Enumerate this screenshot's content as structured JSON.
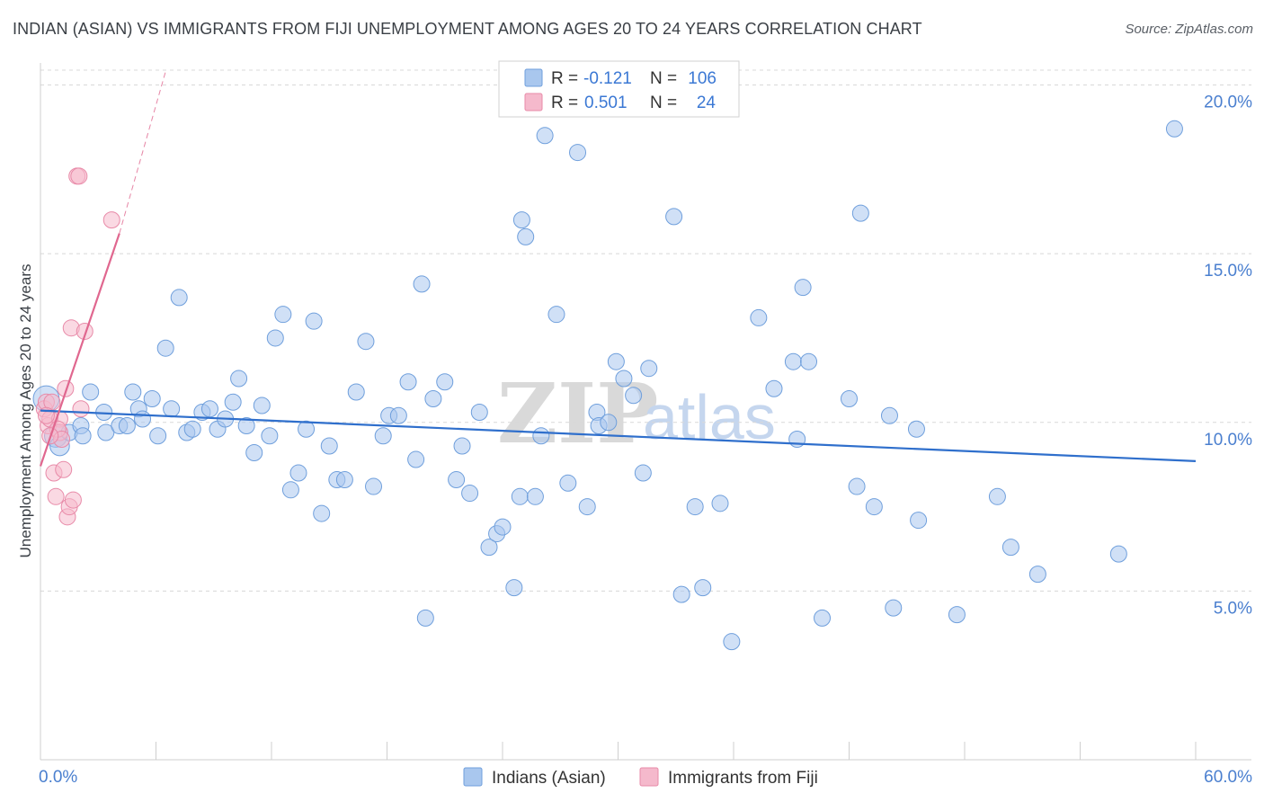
{
  "header": {
    "title": "INDIAN (ASIAN) VS IMMIGRANTS FROM FIJI UNEMPLOYMENT AMONG AGES 20 TO 24 YEARS CORRELATION CHART",
    "source": "Source: ZipAtlas.com"
  },
  "watermark": {
    "zip": "ZIP",
    "atlas": "atlas"
  },
  "colors": {
    "blue_fill": "#a9c7ee",
    "blue_stroke": "#6f9fdc",
    "blue_line": "#2f6fcc",
    "pink_fill": "#f5b9cc",
    "pink_stroke": "#e88aa8",
    "pink_line": "#e0678f",
    "grid": "#d8d8d8",
    "tick_text": "#4a7fcf"
  },
  "legend": {
    "r_label": "R =",
    "n_label": "N =",
    "rows": [
      {
        "series": "blue",
        "r": "-0.121",
        "n": "106"
      },
      {
        "series": "pink",
        "r": "0.501",
        "n": "24"
      }
    ]
  },
  "chart_data": {
    "type": "scatter",
    "title": "INDIAN (ASIAN) VS IMMIGRANTS FROM FIJI UNEMPLOYMENT AMONG AGES 20 TO 24 YEARS CORRELATION CHART",
    "xlabel": "",
    "ylabel": "Unemployment Among Ages 20 to 24 years",
    "xlim": [
      0,
      60
    ],
    "ylim": [
      0,
      20.6
    ],
    "x_tick_labels": [
      "0.0%",
      "60.0%"
    ],
    "y_ticks": [
      {
        "value": 5,
        "label": "5.0%"
      },
      {
        "value": 10,
        "label": "10.0%"
      },
      {
        "value": 15,
        "label": "15.0%"
      },
      {
        "value": 20,
        "label": "20.0%"
      }
    ],
    "x_minor_ticks": [
      0,
      6,
      12,
      18,
      24,
      30,
      36,
      42,
      48,
      54,
      60
    ],
    "series": [
      {
        "name": "Indians (Asian)",
        "color": "blue",
        "trend": {
          "x": [
            0,
            60
          ],
          "y": [
            10.35,
            8.85
          ]
        },
        "points": [
          [
            0.3,
            10.7,
            1.6
          ],
          [
            0.8,
            9.6,
            1.4
          ],
          [
            1.0,
            9.3,
            1.2
          ],
          [
            1.5,
            9.7,
            1.0
          ],
          [
            2.1,
            9.9,
            1.0
          ],
          [
            2.6,
            10.9,
            1.0
          ],
          [
            3.3,
            10.3,
            1.0
          ],
          [
            3.4,
            9.7,
            1.0
          ],
          [
            4.1,
            9.9,
            1.0
          ],
          [
            4.8,
            10.9,
            1.0
          ],
          [
            5.1,
            10.4,
            1.0
          ],
          [
            5.3,
            10.1,
            1.0
          ],
          [
            5.8,
            10.7,
            1.0
          ],
          [
            6.1,
            9.6,
            1.0
          ],
          [
            6.5,
            12.2,
            1.0
          ],
          [
            6.8,
            10.4,
            1.0
          ],
          [
            7.2,
            13.7,
            1.0
          ],
          [
            7.6,
            9.7,
            1.0
          ],
          [
            7.9,
            9.8,
            1.0
          ],
          [
            8.4,
            10.3,
            1.0
          ],
          [
            8.8,
            10.4,
            1.0
          ],
          [
            9.2,
            9.8,
            1.0
          ],
          [
            9.6,
            10.1,
            1.0
          ],
          [
            10.0,
            10.6,
            1.0
          ],
          [
            10.3,
            11.3,
            1.0
          ],
          [
            10.7,
            9.9,
            1.0
          ],
          [
            11.1,
            9.1,
            1.0
          ],
          [
            11.5,
            10.5,
            1.0
          ],
          [
            11.9,
            9.6,
            1.0
          ],
          [
            12.2,
            12.5,
            1.0
          ],
          [
            12.6,
            13.2,
            1.0
          ],
          [
            13.0,
            8.0,
            1.0
          ],
          [
            13.4,
            8.5,
            1.0
          ],
          [
            13.8,
            9.8,
            1.0
          ],
          [
            14.2,
            13.0,
            1.0
          ],
          [
            14.6,
            7.3,
            1.0
          ],
          [
            15.0,
            9.3,
            1.0
          ],
          [
            15.4,
            8.3,
            1.0
          ],
          [
            15.8,
            8.3,
            1.0
          ],
          [
            16.4,
            10.9,
            1.0
          ],
          [
            16.9,
            12.4,
            1.0
          ],
          [
            17.3,
            8.1,
            1.0
          ],
          [
            17.8,
            9.6,
            1.0
          ],
          [
            18.1,
            10.2,
            1.0
          ],
          [
            18.6,
            10.2,
            1.0
          ],
          [
            19.1,
            11.2,
            1.0
          ],
          [
            19.5,
            8.9,
            1.0
          ],
          [
            19.8,
            14.1,
            1.0
          ],
          [
            20.4,
            10.7,
            1.0
          ],
          [
            21.0,
            11.2,
            1.0
          ],
          [
            21.6,
            8.3,
            1.0
          ],
          [
            21.9,
            9.3,
            1.0
          ],
          [
            22.3,
            7.9,
            1.0
          ],
          [
            22.8,
            10.3,
            1.0
          ],
          [
            23.3,
            6.3,
            1.0
          ],
          [
            23.7,
            6.7,
            1.0
          ],
          [
            24.0,
            6.9,
            1.0
          ],
          [
            24.6,
            5.1,
            1.0
          ],
          [
            24.9,
            7.8,
            1.0
          ],
          [
            25.2,
            15.5,
            1.0
          ],
          [
            25.7,
            7.8,
            1.0
          ],
          [
            26.0,
            9.6,
            1.0
          ],
          [
            26.2,
            18.5,
            1.0
          ],
          [
            26.8,
            13.2,
            1.0
          ],
          [
            27.4,
            8.2,
            1.0
          ],
          [
            27.9,
            18.0,
            1.0
          ],
          [
            28.4,
            7.5,
            1.0
          ],
          [
            28.9,
            10.3,
            1.0
          ],
          [
            29.0,
            9.9,
            1.0
          ],
          [
            29.5,
            10.0,
            1.0
          ],
          [
            29.9,
            11.8,
            1.0
          ],
          [
            30.3,
            11.3,
            1.0
          ],
          [
            30.8,
            10.8,
            1.0
          ],
          [
            31.3,
            8.5,
            1.0
          ],
          [
            31.6,
            11.6,
            1.0
          ],
          [
            32.9,
            16.1,
            1.0
          ],
          [
            33.3,
            4.9,
            1.0
          ],
          [
            34.0,
            7.5,
            1.0
          ],
          [
            34.4,
            5.1,
            1.0
          ],
          [
            35.3,
            7.6,
            1.0
          ],
          [
            35.9,
            3.5,
            1.0
          ],
          [
            37.3,
            13.1,
            1.0
          ],
          [
            38.1,
            11.0,
            1.0
          ],
          [
            39.1,
            11.8,
            1.0
          ],
          [
            39.3,
            9.5,
            1.0
          ],
          [
            39.6,
            14.0,
            1.0
          ],
          [
            39.9,
            11.8,
            1.0
          ],
          [
            40.6,
            4.2,
            1.0
          ],
          [
            42.0,
            10.7,
            1.0
          ],
          [
            42.4,
            8.1,
            1.0
          ],
          [
            42.6,
            16.2,
            1.0
          ],
          [
            43.3,
            7.5,
            1.0
          ],
          [
            44.1,
            10.2,
            1.0
          ],
          [
            44.3,
            4.5,
            1.0
          ],
          [
            45.5,
            9.8,
            1.0
          ],
          [
            45.6,
            7.1,
            1.0
          ],
          [
            47.6,
            4.3,
            1.0
          ],
          [
            49.7,
            7.8,
            1.0
          ],
          [
            50.4,
            6.3,
            1.0
          ],
          [
            51.8,
            5.5,
            1.0
          ],
          [
            56.0,
            6.1,
            1.0
          ],
          [
            58.9,
            18.7,
            1.0
          ],
          [
            20.0,
            4.2,
            1.0
          ],
          [
            25.0,
            16.0,
            1.0
          ],
          [
            4.5,
            9.9,
            1.0
          ],
          [
            2.2,
            9.6,
            1.0
          ]
        ]
      },
      {
        "name": "Immigrants from Fiji",
        "color": "pink",
        "trend": {
          "x": [
            0,
            4.1
          ],
          "y": [
            8.7,
            15.6
          ]
        },
        "trend_ext": {
          "x": [
            4.1,
            6.5
          ],
          "y": [
            15.6,
            20.4
          ]
        },
        "points": [
          [
            0.2,
            10.4,
            1.0
          ],
          [
            0.3,
            10.6,
            1.0
          ],
          [
            0.4,
            9.9,
            1.0
          ],
          [
            0.5,
            10.1,
            1.0
          ],
          [
            0.6,
            10.6,
            1.0
          ],
          [
            0.7,
            8.5,
            1.0
          ],
          [
            0.8,
            7.8,
            1.0
          ],
          [
            1.0,
            10.1,
            1.0
          ],
          [
            1.0,
            9.7,
            1.0
          ],
          [
            1.2,
            8.6,
            1.0
          ],
          [
            1.3,
            11.0,
            1.0
          ],
          [
            1.4,
            7.2,
            1.0
          ],
          [
            1.5,
            7.5,
            1.0
          ],
          [
            1.7,
            7.7,
            1.0
          ],
          [
            1.6,
            12.8,
            1.0
          ],
          [
            1.9,
            17.3,
            1.0
          ],
          [
            2.0,
            17.3,
            1.0
          ],
          [
            2.1,
            10.4,
            1.0
          ],
          [
            2.3,
            12.7,
            1.0
          ],
          [
            3.7,
            16.0,
            1.0
          ],
          [
            0.9,
            9.8,
            1.0
          ],
          [
            1.1,
            9.5,
            1.0
          ],
          [
            0.3,
            10.2,
            1.0
          ],
          [
            0.5,
            9.6,
            1.0
          ]
        ]
      }
    ]
  },
  "bottom_legend": {
    "items": [
      {
        "series": "blue",
        "label": "Indians (Asian)"
      },
      {
        "series": "pink",
        "label": "Immigrants from Fiji"
      }
    ]
  }
}
